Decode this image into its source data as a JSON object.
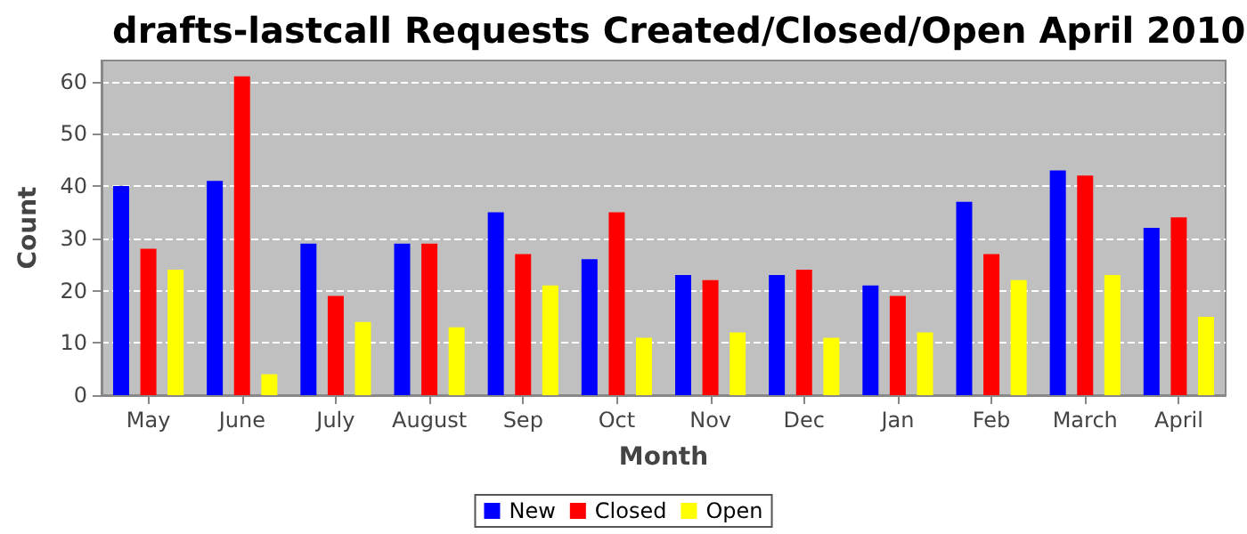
{
  "chart_data": {
    "type": "bar",
    "title": "drafts-lastcall Requests Created/Closed/Open April 2010",
    "xlabel": "Month",
    "ylabel": "Count",
    "categories": [
      "May",
      "June",
      "July",
      "August",
      "Sep",
      "Oct",
      "Nov",
      "Dec",
      "Jan",
      "Feb",
      "March",
      "April"
    ],
    "series": [
      {
        "name": "New",
        "color": "#0000ff",
        "values": [
          40,
          41,
          29,
          29,
          35,
          26,
          23,
          23,
          21,
          37,
          43,
          32
        ]
      },
      {
        "name": "Closed",
        "color": "#ff0000",
        "values": [
          28,
          61,
          19,
          29,
          27,
          35,
          22,
          24,
          19,
          27,
          42,
          34
        ]
      },
      {
        "name": "Open",
        "color": "#ffff00",
        "values": [
          24,
          4,
          14,
          13,
          21,
          11,
          12,
          11,
          12,
          22,
          23,
          15
        ]
      }
    ],
    "ylim": [
      0,
      64
    ],
    "yticks": [
      0,
      10,
      20,
      30,
      40,
      50,
      60
    ],
    "grid": "y",
    "legend": "bottom"
  }
}
